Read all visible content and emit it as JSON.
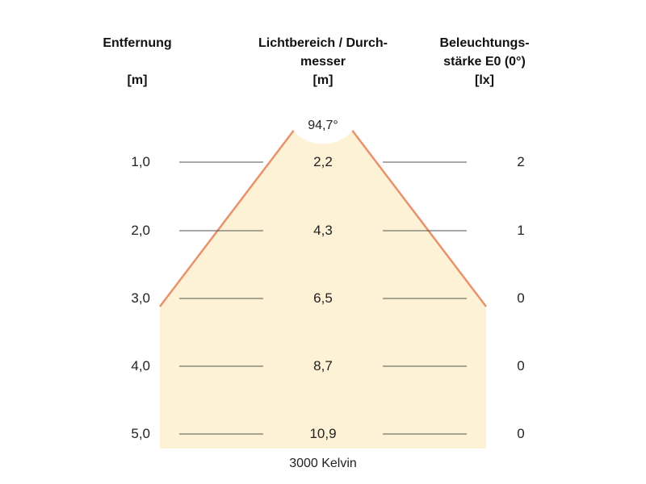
{
  "headers": {
    "distance": [
      "Entfernung",
      "",
      "[m]"
    ],
    "diameter": [
      "Lichtbereich / Durch-",
      "messer",
      "[m]"
    ],
    "illuminance": [
      "Beleuchtungs-",
      "stärke E0 (0°)",
      "[lx]"
    ]
  },
  "beam_angle": "94,7°",
  "rows": [
    {
      "distance": "1,0",
      "diameter": "2,2",
      "lux": "2"
    },
    {
      "distance": "2,0",
      "diameter": "4,3",
      "lux": "1"
    },
    {
      "distance": "3,0",
      "diameter": "6,5",
      "lux": "0"
    },
    {
      "distance": "4,0",
      "diameter": "8,7",
      "lux": "0"
    },
    {
      "distance": "5,0",
      "diameter": "10,9",
      "lux": "0"
    }
  ],
  "footer": "3000 Kelvin",
  "colors": {
    "beam_fill": "#fdf1d6",
    "beam_edge": "#e8926c",
    "guide_line": "#555555"
  }
}
